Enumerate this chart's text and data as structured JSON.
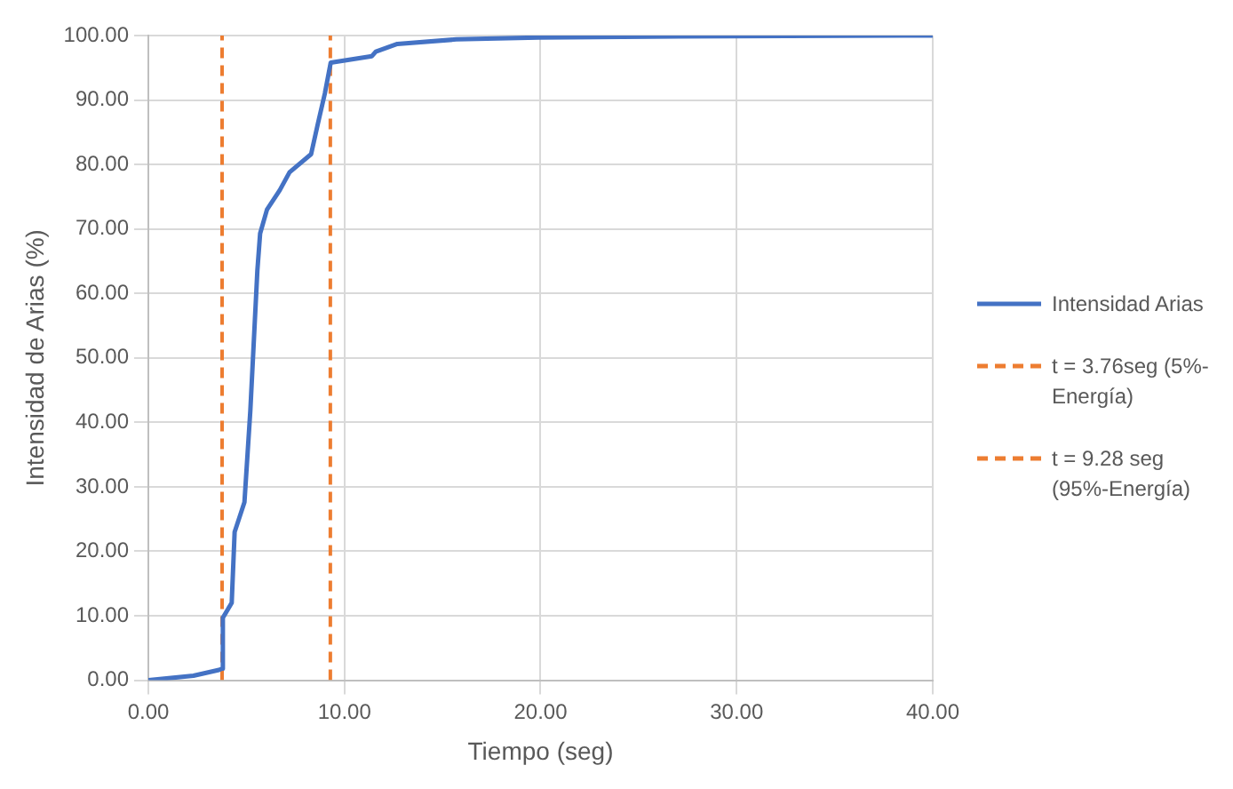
{
  "chart_data": {
    "type": "line",
    "xlabel": "Tiempo (seg)",
    "ylabel": "Intensidad de Arias (%)",
    "xlim": [
      0,
      40
    ],
    "ylim": [
      0,
      100
    ],
    "xticks": [
      {
        "value": 0,
        "label": "0.00"
      },
      {
        "value": 10,
        "label": "10.00"
      },
      {
        "value": 20,
        "label": "20.00"
      },
      {
        "value": 30,
        "label": "30.00"
      },
      {
        "value": 40,
        "label": "40.00"
      }
    ],
    "yticks": [
      {
        "value": 0,
        "label": "0.00"
      },
      {
        "value": 10,
        "label": "10.00"
      },
      {
        "value": 20,
        "label": "20.00"
      },
      {
        "value": 30,
        "label": "30.00"
      },
      {
        "value": 40,
        "label": "40.00"
      },
      {
        "value": 50,
        "label": "50.00"
      },
      {
        "value": 60,
        "label": "60.00"
      },
      {
        "value": 70,
        "label": "70.00"
      },
      {
        "value": 80,
        "label": "80.00"
      },
      {
        "value": 90,
        "label": "90.00"
      },
      {
        "value": 100,
        "label": "100.00"
      }
    ],
    "series": [
      {
        "name": "Intensidad Arias",
        "color": "#4472c4",
        "x": [
          0,
          2.3,
          3.6,
          3.76,
          3.8,
          4.25,
          4.4,
          4.9,
          5.2,
          5.56,
          5.7,
          6.05,
          6.7,
          7.2,
          8.3,
          8.65,
          9.0,
          9.3,
          11.4,
          11.6,
          12.7,
          15.7,
          19.9,
          29.6,
          40
        ],
        "values": [
          0,
          0.7,
          1.6,
          1.8,
          9.7,
          12,
          23,
          27.6,
          41.8,
          63.6,
          69.3,
          73,
          76,
          78.8,
          81.6,
          86.4,
          91,
          95.8,
          96.8,
          97.5,
          98.7,
          99.4,
          99.7,
          99.9,
          100
        ]
      },
      {
        "name": "t = 3.76seg (5%- Energía)",
        "color": "#ed7d31",
        "line_style": "dashed",
        "x": [
          3.76,
          3.76
        ],
        "values": [
          0,
          100
        ]
      },
      {
        "name": "t = 9.28 seg (95%-Energía)",
        "color": "#ed7d31",
        "line_style": "dashed",
        "x": [
          9.28,
          9.28
        ],
        "values": [
          0,
          100
        ]
      }
    ],
    "grid": true,
    "legend": "right",
    "marker": "none",
    "line_style": "solid"
  }
}
